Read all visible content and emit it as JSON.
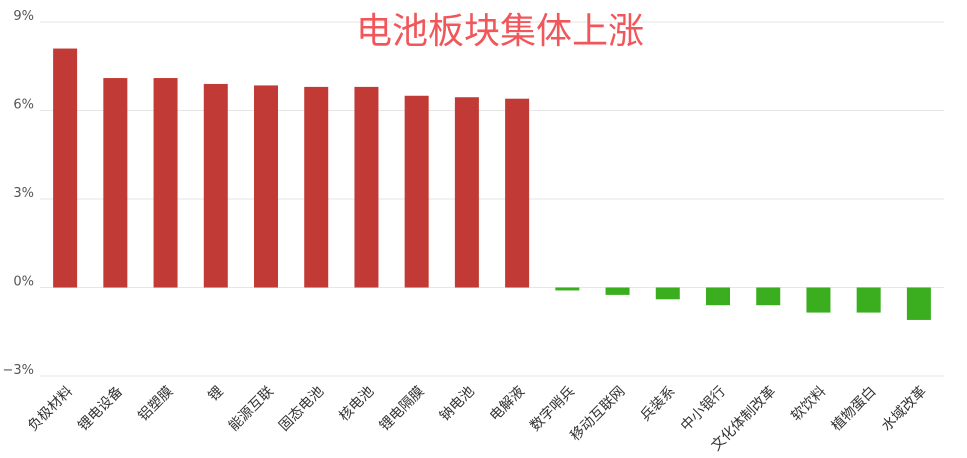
{
  "chart_data": {
    "type": "bar",
    "title": "电池板块集体上涨",
    "xlabel": "",
    "ylabel": "",
    "ylim": [
      -3,
      9
    ],
    "yticks": [
      -3,
      0,
      3,
      6,
      9
    ],
    "ytick_labels": [
      "−3%",
      "0%",
      "3%",
      "6%",
      "9%"
    ],
    "grid": true,
    "legend": "none",
    "colors": {
      "positive": "#c23a35",
      "negative": "#3aae1f",
      "title": "#f0565a"
    },
    "categories": [
      "负极材料",
      "锂电设备",
      "铝塑膜",
      "锂",
      "能源互联",
      "固态电池",
      "核电池",
      "锂电隔膜",
      "钠电池",
      "电解液",
      "数字哨兵",
      "移动互联网",
      "兵装系",
      "中小银行",
      "文化体制改革",
      "软饮料",
      "植物蛋白",
      "水域改革"
    ],
    "values": [
      8.1,
      7.1,
      7.1,
      6.9,
      6.85,
      6.8,
      6.8,
      6.5,
      6.45,
      6.4,
      -0.1,
      -0.25,
      -0.4,
      -0.6,
      -0.6,
      -0.85,
      -0.85,
      -1.1
    ]
  }
}
